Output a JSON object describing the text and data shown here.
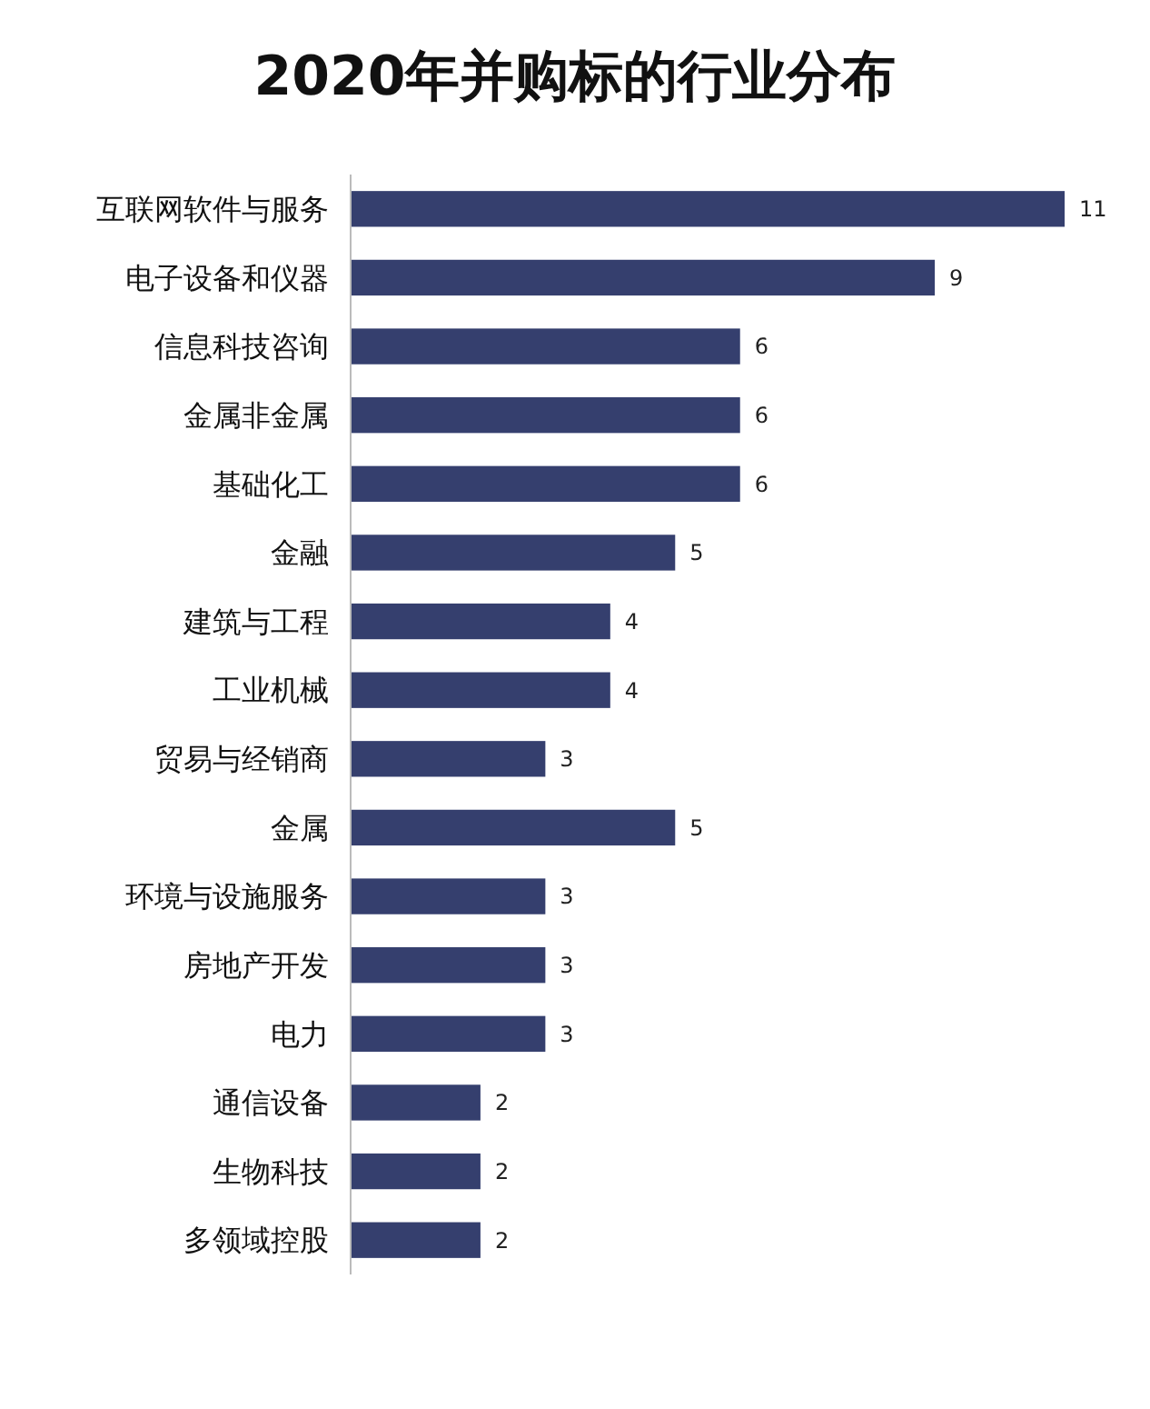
{
  "chart_data": {
    "type": "bar",
    "title": "2020年并购标的行业分布",
    "orientation": "horizontal",
    "categories": [
      "互联网软件与服务",
      "电子设备和仪器",
      "信息科技咨询",
      "金属非金属",
      "基础化工",
      "金融",
      "建筑与工程",
      "工业机械",
      "贸易与经销商",
      "金属",
      "环境与设施服务",
      "房地产开发",
      "电力",
      "通信设备",
      "生物科技",
      "多领域控股"
    ],
    "values": [
      11,
      9,
      6,
      6,
      6,
      5,
      4,
      4,
      3,
      5,
      3,
      3,
      3,
      2,
      2,
      2
    ],
    "color": "#353f6e",
    "data_labels": true
  }
}
